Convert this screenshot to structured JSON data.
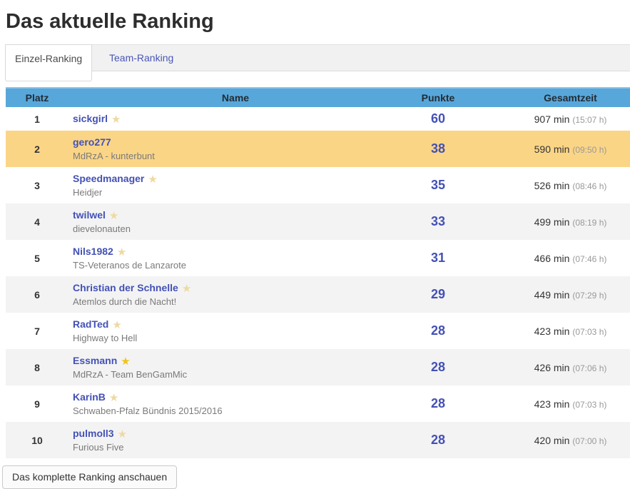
{
  "page": {
    "title": "Das aktuelle Ranking"
  },
  "tabs": [
    {
      "label": "Einzel-Ranking",
      "active": true
    },
    {
      "label": "Team-Ranking",
      "active": false
    }
  ],
  "table": {
    "headers": {
      "platz": "Platz",
      "name": "Name",
      "punkte": "Punkte",
      "gesamtzeit": "Gesamtzeit"
    },
    "rows": [
      {
        "platz": "1",
        "name": "sickgirl",
        "team": "",
        "star": "pale",
        "punkte": "60",
        "zeit_min": "907 min",
        "zeit_hours": "(15:07 h)",
        "highlight": false
      },
      {
        "platz": "2",
        "name": "gero277",
        "team": "MdRzA - kunterbunt",
        "star": "none",
        "punkte": "38",
        "zeit_min": "590 min",
        "zeit_hours": "(09:50 h)",
        "highlight": true
      },
      {
        "platz": "3",
        "name": "Speedmanager",
        "team": "Heidjer",
        "star": "pale",
        "punkte": "35",
        "zeit_min": "526 min",
        "zeit_hours": "(08:46 h)",
        "highlight": false
      },
      {
        "platz": "4",
        "name": "twilwel",
        "team": "dievelonauten",
        "star": "pale",
        "punkte": "33",
        "zeit_min": "499 min",
        "zeit_hours": "(08:19 h)",
        "highlight": false
      },
      {
        "platz": "5",
        "name": "Nils1982",
        "team": "TS-Veteranos de Lanzarote",
        "star": "pale",
        "punkte": "31",
        "zeit_min": "466 min",
        "zeit_hours": "(07:46 h)",
        "highlight": false
      },
      {
        "platz": "6",
        "name": "Christian der Schnelle",
        "team": "Atemlos durch die Nacht!",
        "star": "pale",
        "punkte": "29",
        "zeit_min": "449 min",
        "zeit_hours": "(07:29 h)",
        "highlight": false
      },
      {
        "platz": "7",
        "name": "RadTed",
        "team": "Highway to Hell",
        "star": "pale",
        "punkte": "28",
        "zeit_min": "423 min",
        "zeit_hours": "(07:03 h)",
        "highlight": false
      },
      {
        "platz": "8",
        "name": "Essmann",
        "team": "MdRzA - Team BenGamMic",
        "star": "gold",
        "punkte": "28",
        "zeit_min": "426 min",
        "zeit_hours": "(07:06 h)",
        "highlight": false
      },
      {
        "platz": "9",
        "name": "KarinB",
        "team": "Schwaben-Pfalz Bündnis 2015/2016",
        "star": "pale",
        "punkte": "28",
        "zeit_min": "423 min",
        "zeit_hours": "(07:03 h)",
        "highlight": false
      },
      {
        "platz": "10",
        "name": "pulmoll3",
        "team": "Furious Five",
        "star": "pale",
        "punkte": "28",
        "zeit_min": "420 min",
        "zeit_hours": "(07:00 h)",
        "highlight": false
      }
    ]
  },
  "footer": {
    "button_label": "Das komplette Ranking anschauen"
  },
  "colors": {
    "header_bg": "#58a7db",
    "highlight": "#fbd586",
    "stripe": "#f3f3f3",
    "link": "#4351b5",
    "tab_link": "#4a56b8",
    "star_pale": "#eed9a2",
    "star_gold": "#f0c419"
  }
}
